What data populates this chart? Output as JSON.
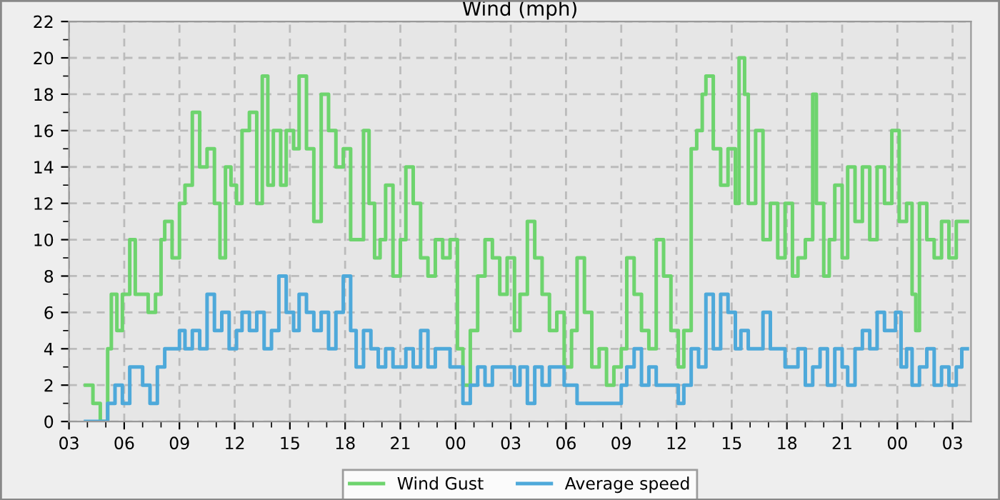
{
  "chart_data": {
    "type": "step",
    "title": "Wind (mph)",
    "xlim": [
      3,
      52
    ],
    "ylim": [
      0,
      22
    ],
    "xticks": [
      {
        "value": 3,
        "label": "03"
      },
      {
        "value": 4,
        "label": null
      },
      {
        "value": 5,
        "label": null
      },
      {
        "value": 6,
        "label": "06"
      },
      {
        "value": 7,
        "label": null
      },
      {
        "value": 8,
        "label": null
      },
      {
        "value": 9,
        "label": "09"
      },
      {
        "value": 10,
        "label": null
      },
      {
        "value": 11,
        "label": null
      },
      {
        "value": 12,
        "label": "12"
      },
      {
        "value": 13,
        "label": null
      },
      {
        "value": 14,
        "label": null
      },
      {
        "value": 15,
        "label": "15"
      },
      {
        "value": 16,
        "label": null
      },
      {
        "value": 17,
        "label": null
      },
      {
        "value": 18,
        "label": "18"
      },
      {
        "value": 19,
        "label": null
      },
      {
        "value": 20,
        "label": null
      },
      {
        "value": 21,
        "label": "21"
      },
      {
        "value": 22,
        "label": null
      },
      {
        "value": 23,
        "label": null
      },
      {
        "value": 24,
        "label": "00"
      },
      {
        "value": 25,
        "label": null
      },
      {
        "value": 26,
        "label": null
      },
      {
        "value": 27,
        "label": "03"
      },
      {
        "value": 28,
        "label": null
      },
      {
        "value": 29,
        "label": null
      },
      {
        "value": 30,
        "label": "06"
      },
      {
        "value": 31,
        "label": null
      },
      {
        "value": 32,
        "label": null
      },
      {
        "value": 33,
        "label": "09"
      },
      {
        "value": 34,
        "label": null
      },
      {
        "value": 35,
        "label": null
      },
      {
        "value": 36,
        "label": "12"
      },
      {
        "value": 37,
        "label": null
      },
      {
        "value": 38,
        "label": null
      },
      {
        "value": 39,
        "label": "15"
      },
      {
        "value": 40,
        "label": null
      },
      {
        "value": 41,
        "label": null
      },
      {
        "value": 42,
        "label": "18"
      },
      {
        "value": 43,
        "label": null
      },
      {
        "value": 44,
        "label": null
      },
      {
        "value": 45,
        "label": "21"
      },
      {
        "value": 46,
        "label": null
      },
      {
        "value": 47,
        "label": null
      },
      {
        "value": 48,
        "label": "00"
      },
      {
        "value": 49,
        "label": null
      },
      {
        "value": 50,
        "label": null
      },
      {
        "value": 51,
        "label": "03"
      }
    ],
    "yticks": [
      0,
      {
        "value": 1,
        "label": null
      },
      2,
      {
        "value": 3,
        "label": null
      },
      4,
      {
        "value": 5,
        "label": null
      },
      6,
      {
        "value": 7,
        "label": null
      },
      8,
      {
        "value": 9,
        "label": null
      },
      10,
      {
        "value": 11,
        "label": null
      },
      12,
      {
        "value": 13,
        "label": null
      },
      14,
      {
        "value": 15,
        "label": null
      },
      16,
      {
        "value": 17,
        "label": null
      },
      18,
      {
        "value": 19,
        "label": null
      },
      20,
      {
        "value": 21,
        "label": null
      },
      22
    ],
    "grid": true,
    "legend": "bottom",
    "line_style": "solid",
    "marker": "none",
    "series": [
      {
        "name": "Wind Gust",
        "color": "#6ed46e",
        "x": [
          3.9,
          4.3,
          4.7,
          5.1,
          5.3,
          5.6,
          5.9,
          6.3,
          6.6,
          6.9,
          7.3,
          7.7,
          8.0,
          8.2,
          8.6,
          9.0,
          9.3,
          9.7,
          10.1,
          10.5,
          10.9,
          11.2,
          11.5,
          11.8,
          12.1,
          12.4,
          12.8,
          13.2,
          13.5,
          13.8,
          14.1,
          14.5,
          14.8,
          15.2,
          15.5,
          15.9,
          16.3,
          16.7,
          17.1,
          17.5,
          17.9,
          18.3,
          18.6,
          19.0,
          19.3,
          19.6,
          19.9,
          20.2,
          20.6,
          21.0,
          21.3,
          21.7,
          22.1,
          22.5,
          22.9,
          23.3,
          23.7,
          24.1,
          24.4,
          24.8,
          25.2,
          25.6,
          26.0,
          26.4,
          26.8,
          27.2,
          27.5,
          27.9,
          28.3,
          28.7,
          29.1,
          29.5,
          29.9,
          30.3,
          30.6,
          31.0,
          31.4,
          31.8,
          32.2,
          32.6,
          33.0,
          33.3,
          33.7,
          34.1,
          34.5,
          34.9,
          35.3,
          35.7,
          36.1,
          36.4,
          36.8,
          37.1,
          37.4,
          37.6,
          38.0,
          38.4,
          38.8,
          39.2,
          39.4,
          39.7,
          39.9,
          40.3,
          40.7,
          41.1,
          41.5,
          41.9,
          42.3,
          42.6,
          43.0,
          43.4,
          43.6,
          44.0,
          44.3,
          44.6,
          45.0,
          45.3,
          45.7,
          46.1,
          46.5,
          46.9,
          47.3,
          47.7,
          48.1,
          48.5,
          48.8,
          49.0,
          49.2,
          49.6,
          50.0,
          50.4,
          50.8,
          51.2,
          51.5,
          51.8
        ],
        "values": [
          2,
          1,
          0,
          4,
          7,
          5,
          7,
          10,
          7,
          7,
          6,
          7,
          10,
          11,
          9,
          12,
          13,
          17,
          14,
          15,
          12,
          9,
          14,
          13,
          12,
          16,
          17,
          12,
          19,
          13,
          16,
          13,
          16,
          15,
          19,
          15,
          11,
          18,
          16,
          14,
          15,
          10,
          10,
          16,
          12,
          9,
          10,
          13,
          8,
          10,
          14,
          12,
          9,
          8,
          10,
          9,
          10,
          4,
          2,
          5,
          8,
          10,
          9,
          7,
          9,
          5,
          7,
          11,
          9,
          7,
          5,
          6,
          3,
          5,
          9,
          6,
          3,
          4,
          2,
          3,
          4,
          9,
          7,
          5,
          4,
          10,
          8,
          5,
          3,
          5,
          15,
          16,
          18,
          19,
          15,
          13,
          15,
          12,
          20,
          18,
          12,
          16,
          10,
          12,
          9,
          12,
          8,
          9,
          10,
          18,
          12,
          8,
          10,
          13,
          9,
          14,
          11,
          14,
          10,
          14,
          12,
          16,
          11,
          12,
          7,
          5,
          12,
          10,
          9,
          11,
          9,
          11,
          11,
          11
        ]
      },
      {
        "name": "Average speed",
        "color": "#4ea9da",
        "x": [
          3.9,
          4.7,
          5.1,
          5.5,
          5.9,
          6.3,
          6.6,
          7.0,
          7.4,
          7.8,
          8.2,
          8.6,
          9.0,
          9.3,
          9.7,
          10.1,
          10.5,
          10.9,
          11.3,
          11.7,
          12.1,
          12.4,
          12.8,
          13.2,
          13.6,
          14.0,
          14.4,
          14.8,
          15.2,
          15.5,
          15.9,
          16.3,
          16.7,
          17.1,
          17.5,
          17.9,
          18.3,
          18.6,
          19.0,
          19.4,
          19.8,
          20.2,
          20.6,
          21.0,
          21.3,
          21.7,
          22.1,
          22.5,
          22.9,
          23.3,
          23.7,
          24.1,
          24.4,
          24.8,
          25.2,
          25.6,
          26.0,
          26.4,
          26.8,
          27.2,
          27.5,
          27.9,
          28.3,
          28.7,
          29.1,
          29.5,
          29.9,
          30.3,
          30.6,
          31.0,
          31.8,
          32.6,
          33.0,
          33.3,
          33.7,
          34.1,
          34.5,
          34.9,
          35.3,
          35.7,
          36.1,
          36.4,
          36.8,
          37.2,
          37.6,
          38.0,
          38.4,
          38.8,
          39.2,
          39.5,
          39.9,
          40.3,
          40.7,
          41.1,
          41.5,
          41.9,
          42.3,
          42.6,
          43.0,
          43.4,
          43.8,
          44.2,
          44.6,
          45.0,
          45.3,
          45.7,
          46.1,
          46.5,
          46.9,
          47.3,
          47.7,
          47.9,
          48.2,
          48.5,
          48.8,
          49.2,
          49.6,
          50.0,
          50.4,
          50.8,
          51.2,
          51.5,
          51.8
        ],
        "values": [
          0,
          0,
          1,
          2,
          1,
          3,
          3,
          2,
          1,
          3,
          4,
          4,
          5,
          4,
          5,
          4,
          7,
          5,
          6,
          4,
          5,
          6,
          5,
          6,
          4,
          5,
          8,
          6,
          5,
          7,
          6,
          5,
          6,
          4,
          6,
          8,
          5,
          3,
          5,
          4,
          3,
          4,
          3,
          3,
          4,
          3,
          5,
          3,
          4,
          4,
          3,
          3,
          1,
          2,
          3,
          2,
          3,
          3,
          3,
          2,
          3,
          1,
          3,
          2,
          3,
          3,
          2,
          2,
          1,
          1,
          1,
          1,
          2,
          3,
          4,
          2,
          3,
          2,
          2,
          2,
          1,
          2,
          4,
          3,
          7,
          4,
          7,
          6,
          4,
          5,
          4,
          4,
          6,
          4,
          4,
          3,
          3,
          4,
          2,
          3,
          4,
          2,
          4,
          3,
          2,
          4,
          5,
          4,
          6,
          5,
          5,
          6,
          3,
          4,
          2,
          3,
          4,
          2,
          3,
          2,
          3,
          4,
          4
        ]
      }
    ]
  }
}
